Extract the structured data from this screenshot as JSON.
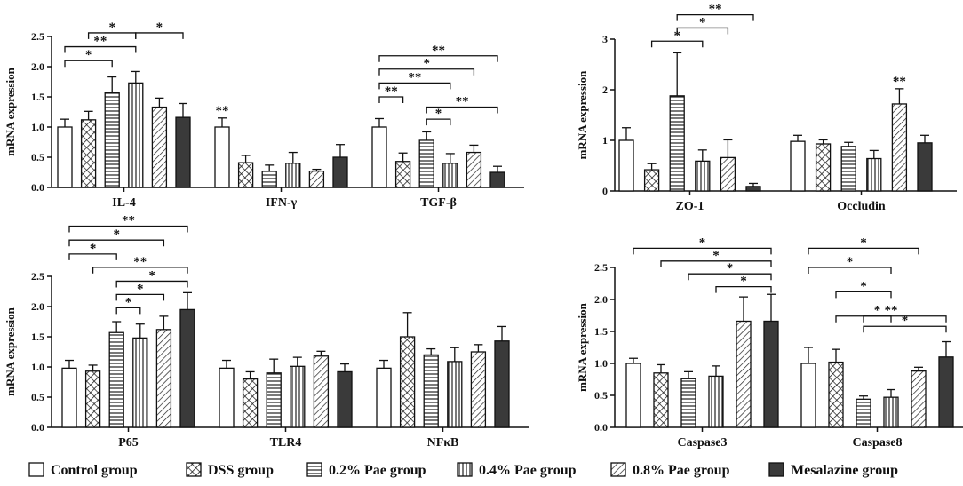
{
  "legend": {
    "groups": [
      "Control group",
      "DSS group",
      "0.2% Pae group",
      "0.4% Pae group",
      "0.8% Pae group",
      "Mesalazine group"
    ],
    "patterns": [
      "white",
      "cross-hatch",
      "horizontal-lines",
      "vertical-lines",
      "diagonal-lines",
      "dark-fill"
    ]
  },
  "chart_data": [
    {
      "type": "bar",
      "panel": "top-left",
      "ylabel": "mRNA expression",
      "ylim": [
        0,
        2.5
      ],
      "yticks": [
        "0.0",
        "0.5",
        "1.0",
        "1.5",
        "2.0",
        "2.5"
      ],
      "categories": [
        "IL-4",
        "IFN-γ",
        "TGF-β"
      ],
      "series": [
        {
          "name": "Control group",
          "values": [
            1.0,
            1.0,
            1.0
          ],
          "errors": [
            0.13,
            0.15,
            0.14
          ]
        },
        {
          "name": "DSS group",
          "values": [
            1.12,
            0.41,
            0.43
          ],
          "errors": [
            0.14,
            0.12,
            0.14
          ]
        },
        {
          "name": "0.2% Pae group",
          "values": [
            1.57,
            0.27,
            0.78
          ],
          "errors": [
            0.26,
            0.1,
            0.14
          ]
        },
        {
          "name": "0.4% Pae group",
          "values": [
            1.73,
            0.4,
            0.4
          ],
          "errors": [
            0.19,
            0.18,
            0.16
          ]
        },
        {
          "name": "0.8% Pae group",
          "values": [
            1.33,
            0.27,
            0.58
          ],
          "errors": [
            0.15,
            0.03,
            0.12
          ]
        },
        {
          "name": "Mesalazine group",
          "values": [
            1.16,
            0.5,
            0.25
          ],
          "errors": [
            0.23,
            0.21,
            0.1
          ]
        }
      ],
      "bar_stars": [
        {
          "category": 1,
          "group": 0,
          "label": "**"
        }
      ],
      "brackets": [
        {
          "category": 0,
          "from": 0,
          "to": 2,
          "level": 2.1,
          "label": "*"
        },
        {
          "category": 0,
          "from": 0,
          "to": 3,
          "level": 2.33,
          "label": "**"
        },
        {
          "category": 0,
          "from": 1,
          "to": 3,
          "level": 2.56,
          "label": "*"
        },
        {
          "category": 0,
          "from": 3,
          "to": 5,
          "level": 2.56,
          "label": "*"
        },
        {
          "category": 2,
          "from": 0,
          "to": 1,
          "level": 1.5,
          "label": "**"
        },
        {
          "category": 2,
          "from": 0,
          "to": 3,
          "level": 1.73,
          "label": "**"
        },
        {
          "category": 2,
          "from": 0,
          "to": 4,
          "level": 1.96,
          "label": "*"
        },
        {
          "category": 2,
          "from": 0,
          "to": 5,
          "level": 2.18,
          "label": "**"
        },
        {
          "category": 2,
          "from": 2,
          "to": 3,
          "level": 1.13,
          "label": "*"
        },
        {
          "category": 2,
          "from": 2,
          "to": 5,
          "level": 1.33,
          "label": "**"
        }
      ]
    },
    {
      "type": "bar",
      "panel": "top-right",
      "ylabel": "mRNA expression",
      "ylim": [
        0,
        3
      ],
      "yticks": [
        "0",
        "1",
        "2",
        "3"
      ],
      "categories": [
        "ZO-1",
        "Occludin"
      ],
      "series": [
        {
          "name": "Control group",
          "values": [
            1.0,
            0.98
          ],
          "errors": [
            0.25,
            0.12
          ]
        },
        {
          "name": "DSS group",
          "values": [
            0.42,
            0.93
          ],
          "errors": [
            0.12,
            0.08
          ]
        },
        {
          "name": "0.2% Pae group",
          "values": [
            1.88,
            0.88
          ],
          "errors": [
            0.85,
            0.08
          ]
        },
        {
          "name": "0.4% Pae group",
          "values": [
            0.59,
            0.64
          ],
          "errors": [
            0.22,
            0.16
          ]
        },
        {
          "name": "0.8% Pae group",
          "values": [
            0.66,
            1.72
          ],
          "errors": [
            0.35,
            0.3
          ]
        },
        {
          "name": "Mesalazine group",
          "values": [
            0.09,
            0.95
          ],
          "errors": [
            0.06,
            0.15
          ]
        }
      ],
      "bar_stars": [
        {
          "category": 1,
          "group": 4,
          "label": "**"
        }
      ],
      "brackets": [
        {
          "category": 0,
          "from": 1,
          "to": 3,
          "level": 2.96,
          "label": "*"
        },
        {
          "category": 0,
          "from": 2,
          "to": 4,
          "level": 3.22,
          "label": "*"
        },
        {
          "category": 0,
          "from": 2,
          "to": 5,
          "level": 3.48,
          "label": "**"
        }
      ]
    },
    {
      "type": "bar",
      "panel": "bottom-left",
      "ylabel": "mRNA expression",
      "ylim": [
        0,
        2.5
      ],
      "yticks": [
        "0.0",
        "0.5",
        "1.0",
        "1.5",
        "2.0",
        "2.5"
      ],
      "categories": [
        "P65",
        "TLR4",
        "NFκB"
      ],
      "series": [
        {
          "name": "Control group",
          "values": [
            0.98,
            0.98,
            0.98
          ],
          "errors": [
            0.13,
            0.13,
            0.13
          ]
        },
        {
          "name": "DSS group",
          "values": [
            0.93,
            0.8,
            1.5
          ],
          "errors": [
            0.1,
            0.12,
            0.4
          ]
        },
        {
          "name": "0.2% Pae group",
          "values": [
            1.57,
            0.9,
            1.2
          ],
          "errors": [
            0.18,
            0.23,
            0.1
          ]
        },
        {
          "name": "0.4% Pae group",
          "values": [
            1.48,
            1.01,
            1.09
          ],
          "errors": [
            0.23,
            0.15,
            0.23
          ]
        },
        {
          "name": "0.8% Pae group",
          "values": [
            1.62,
            1.18,
            1.25
          ],
          "errors": [
            0.22,
            0.08,
            0.12
          ]
        },
        {
          "name": "Mesalazine group",
          "values": [
            1.95,
            0.92,
            1.43
          ],
          "errors": [
            0.28,
            0.13,
            0.24
          ]
        }
      ],
      "bar_stars": [],
      "brackets": [
        {
          "category": 0,
          "from": 2,
          "to": 3,
          "level": 1.98,
          "label": "*"
        },
        {
          "category": 0,
          "from": 2,
          "to": 4,
          "level": 2.2,
          "label": "*"
        },
        {
          "category": 0,
          "from": 2,
          "to": 5,
          "level": 2.42,
          "label": "*"
        },
        {
          "category": 0,
          "from": 1,
          "to": 5,
          "level": 2.65,
          "label": "**"
        },
        {
          "category": 0,
          "from": 0,
          "to": 2,
          "level": 2.87,
          "label": "*"
        },
        {
          "category": 0,
          "from": 0,
          "to": 4,
          "level": 3.1,
          "label": "*"
        },
        {
          "category": 0,
          "from": 0,
          "to": 5,
          "level": 3.33,
          "label": "**"
        }
      ]
    },
    {
      "type": "bar",
      "panel": "bottom-right",
      "ylabel": "mRNA expression",
      "ylim": [
        0,
        2.5
      ],
      "yticks": [
        "0.0",
        "0.5",
        "1.0",
        "1.5",
        "2.0",
        "2.5"
      ],
      "categories": [
        "Caspase3",
        "Caspase8"
      ],
      "series": [
        {
          "name": "Control group",
          "values": [
            1.0,
            1.0
          ],
          "errors": [
            0.08,
            0.25
          ]
        },
        {
          "name": "DSS group",
          "values": [
            0.85,
            1.02
          ],
          "errors": [
            0.13,
            0.2
          ]
        },
        {
          "name": "0.2% Pae group",
          "values": [
            0.76,
            0.44
          ],
          "errors": [
            0.11,
            0.05
          ]
        },
        {
          "name": "0.4% Pae group",
          "values": [
            0.8,
            0.47
          ],
          "errors": [
            0.16,
            0.12
          ]
        },
        {
          "name": "0.8% Pae group",
          "values": [
            1.66,
            0.88
          ],
          "errors": [
            0.38,
            0.06
          ]
        },
        {
          "name": "Mesalazine group",
          "values": [
            1.66,
            1.1
          ],
          "errors": [
            0.42,
            0.24
          ]
        }
      ],
      "bar_stars": [],
      "brackets": [
        {
          "category": 0,
          "from": 3,
          "to": 5,
          "level": 2.2,
          "label": "*"
        },
        {
          "category": 0,
          "from": 2,
          "to": 5,
          "level": 2.4,
          "label": "*"
        },
        {
          "category": 0,
          "from": 1,
          "to": 5,
          "level": 2.6,
          "label": "*"
        },
        {
          "category": 0,
          "from": 0,
          "to": 5,
          "level": 2.8,
          "label": "*"
        },
        {
          "category": 1,
          "from": 2,
          "to": 5,
          "level": 1.58,
          "label": "*"
        },
        {
          "category": 1,
          "from": 2,
          "to": 3,
          "level": 1.74,
          "label": "*"
        },
        {
          "category": 1,
          "from": 1,
          "to": 5,
          "level": 1.74,
          "label": "**"
        },
        {
          "category": 1,
          "from": 1,
          "to": 3,
          "level": 2.12,
          "label": "*"
        },
        {
          "category": 1,
          "from": 0,
          "to": 3,
          "level": 2.5,
          "label": "*"
        },
        {
          "category": 1,
          "from": 0,
          "to": 4,
          "level": 2.8,
          "label": "*"
        }
      ]
    }
  ]
}
